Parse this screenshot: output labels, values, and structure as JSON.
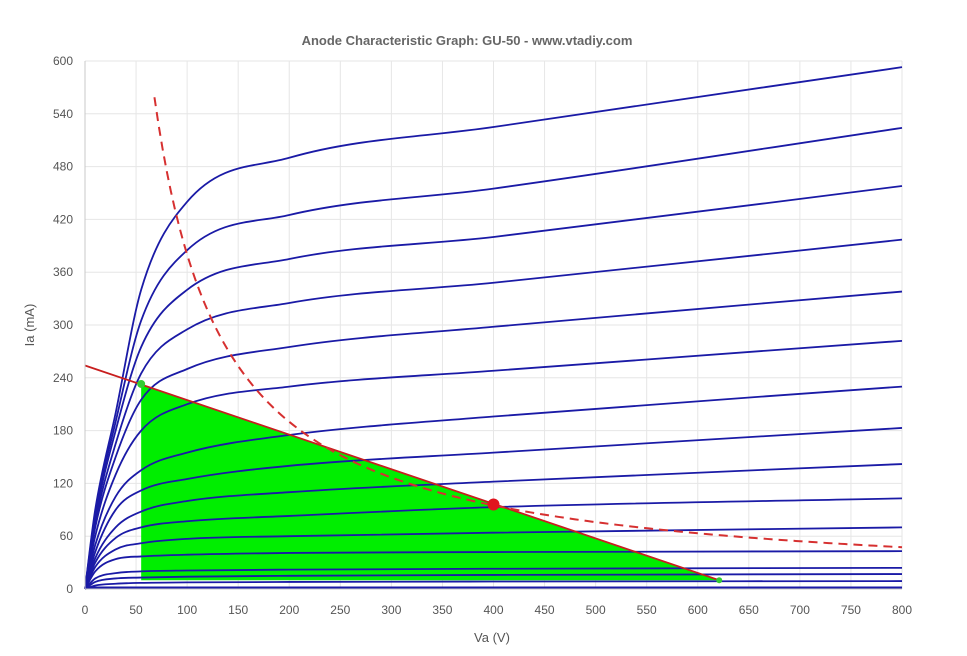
{
  "chart_data": {
    "type": "line",
    "title": "Anode Characteristic Graph: GU-50 - www.vtadiy.com",
    "xlabel": "Va (V)",
    "ylabel": "Ia (mA)",
    "xlim": [
      0,
      800
    ],
    "ylim": [
      0,
      600
    ],
    "x_ticks": [
      0,
      50,
      100,
      150,
      200,
      250,
      300,
      350,
      400,
      450,
      500,
      550,
      600,
      650,
      700,
      750,
      800
    ],
    "y_ticks": [
      0,
      60,
      120,
      180,
      240,
      300,
      360,
      420,
      480,
      540,
      600
    ],
    "grid": true,
    "legend": "none",
    "colors": {
      "curves": "#1a1aa6",
      "load_line": "#c81e1e",
      "dissipation": "#d63030",
      "swing_fill": "#00ee00",
      "operating_point": "#e0141e",
      "swing_marker": "#33cc33",
      "grid": "#e6e6e6",
      "text": "#555555"
    },
    "curves": [
      {
        "x": [
          0,
          10,
          30,
          55,
          100,
          200,
          400,
          800
        ],
        "y": [
          0,
          4,
          6,
          7,
          7.5,
          8,
          8.5,
          9
        ]
      },
      {
        "x": [
          0,
          10,
          30,
          55,
          100,
          200,
          400,
          800
        ],
        "y": [
          0,
          8,
          12,
          13,
          14,
          15,
          16,
          17
        ]
      },
      {
        "x": [
          0,
          10,
          30,
          55,
          100,
          200,
          400,
          800
        ],
        "y": [
          0,
          12,
          18,
          20,
          21,
          22,
          23,
          24
        ]
      },
      {
        "x": [
          0,
          10,
          30,
          55,
          100,
          200,
          400,
          800
        ],
        "y": [
          0,
          20,
          34,
          37,
          39,
          41,
          42,
          43
        ]
      },
      {
        "x": [
          0,
          10,
          30,
          55,
          100,
          200,
          400,
          800
        ],
        "y": [
          0,
          25,
          45,
          52,
          57,
          60,
          64,
          70
        ]
      },
      {
        "x": [
          0,
          10,
          30,
          55,
          100,
          200,
          400,
          800
        ],
        "y": [
          0,
          30,
          58,
          70,
          77,
          83,
          93,
          103
        ]
      },
      {
        "x": [
          0,
          10,
          30,
          55,
          100,
          200,
          400,
          800
        ],
        "y": [
          0,
          35,
          70,
          88,
          100,
          110,
          122,
          142
        ]
      },
      {
        "x": [
          0,
          10,
          30,
          55,
          100,
          200,
          400,
          800
        ],
        "y": [
          0,
          42,
          90,
          112,
          125,
          140,
          155,
          183
        ]
      },
      {
        "x": [
          0,
          10,
          30,
          55,
          100,
          200,
          400,
          800
        ],
        "y": [
          0,
          50,
          105,
          135,
          155,
          175,
          196,
          230
        ]
      },
      {
        "x": [
          0,
          10,
          30,
          55,
          100,
          200,
          400,
          800
        ],
        "y": [
          0,
          60,
          130,
          180,
          210,
          230,
          248,
          282
        ]
      },
      {
        "x": [
          0,
          10,
          30,
          55,
          100,
          200,
          400,
          800
        ],
        "y": [
          0,
          70,
          150,
          215,
          250,
          275,
          298,
          338
        ]
      },
      {
        "x": [
          0,
          10,
          30,
          55,
          100,
          200,
          400,
          800
        ],
        "y": [
          0,
          75,
          165,
          245,
          295,
          325,
          348,
          397
        ]
      },
      {
        "x": [
          0,
          10,
          30,
          55,
          100,
          200,
          400,
          800
        ],
        "y": [
          0,
          80,
          180,
          275,
          340,
          375,
          400,
          458
        ]
      },
      {
        "x": [
          0,
          10,
          30,
          55,
          100,
          200,
          400,
          800
        ],
        "y": [
          0,
          85,
          190,
          305,
          385,
          425,
          455,
          524
        ]
      },
      {
        "x": [
          0,
          10,
          30,
          55,
          100,
          200,
          400,
          800
        ],
        "y": [
          0,
          90,
          200,
          340,
          440,
          490,
          525,
          593
        ]
      }
    ],
    "load_line": {
      "x": [
        0,
        621
      ],
      "y": [
        254,
        10
      ]
    },
    "dissipation_curve": {
      "power_w": 38,
      "x_range": [
        68,
        800
      ]
    },
    "operating_point": {
      "x": 400,
      "y": 96
    },
    "swing": {
      "x_min": 55,
      "x_max": 621,
      "y_top": 233,
      "y_bottom": 10
    }
  }
}
